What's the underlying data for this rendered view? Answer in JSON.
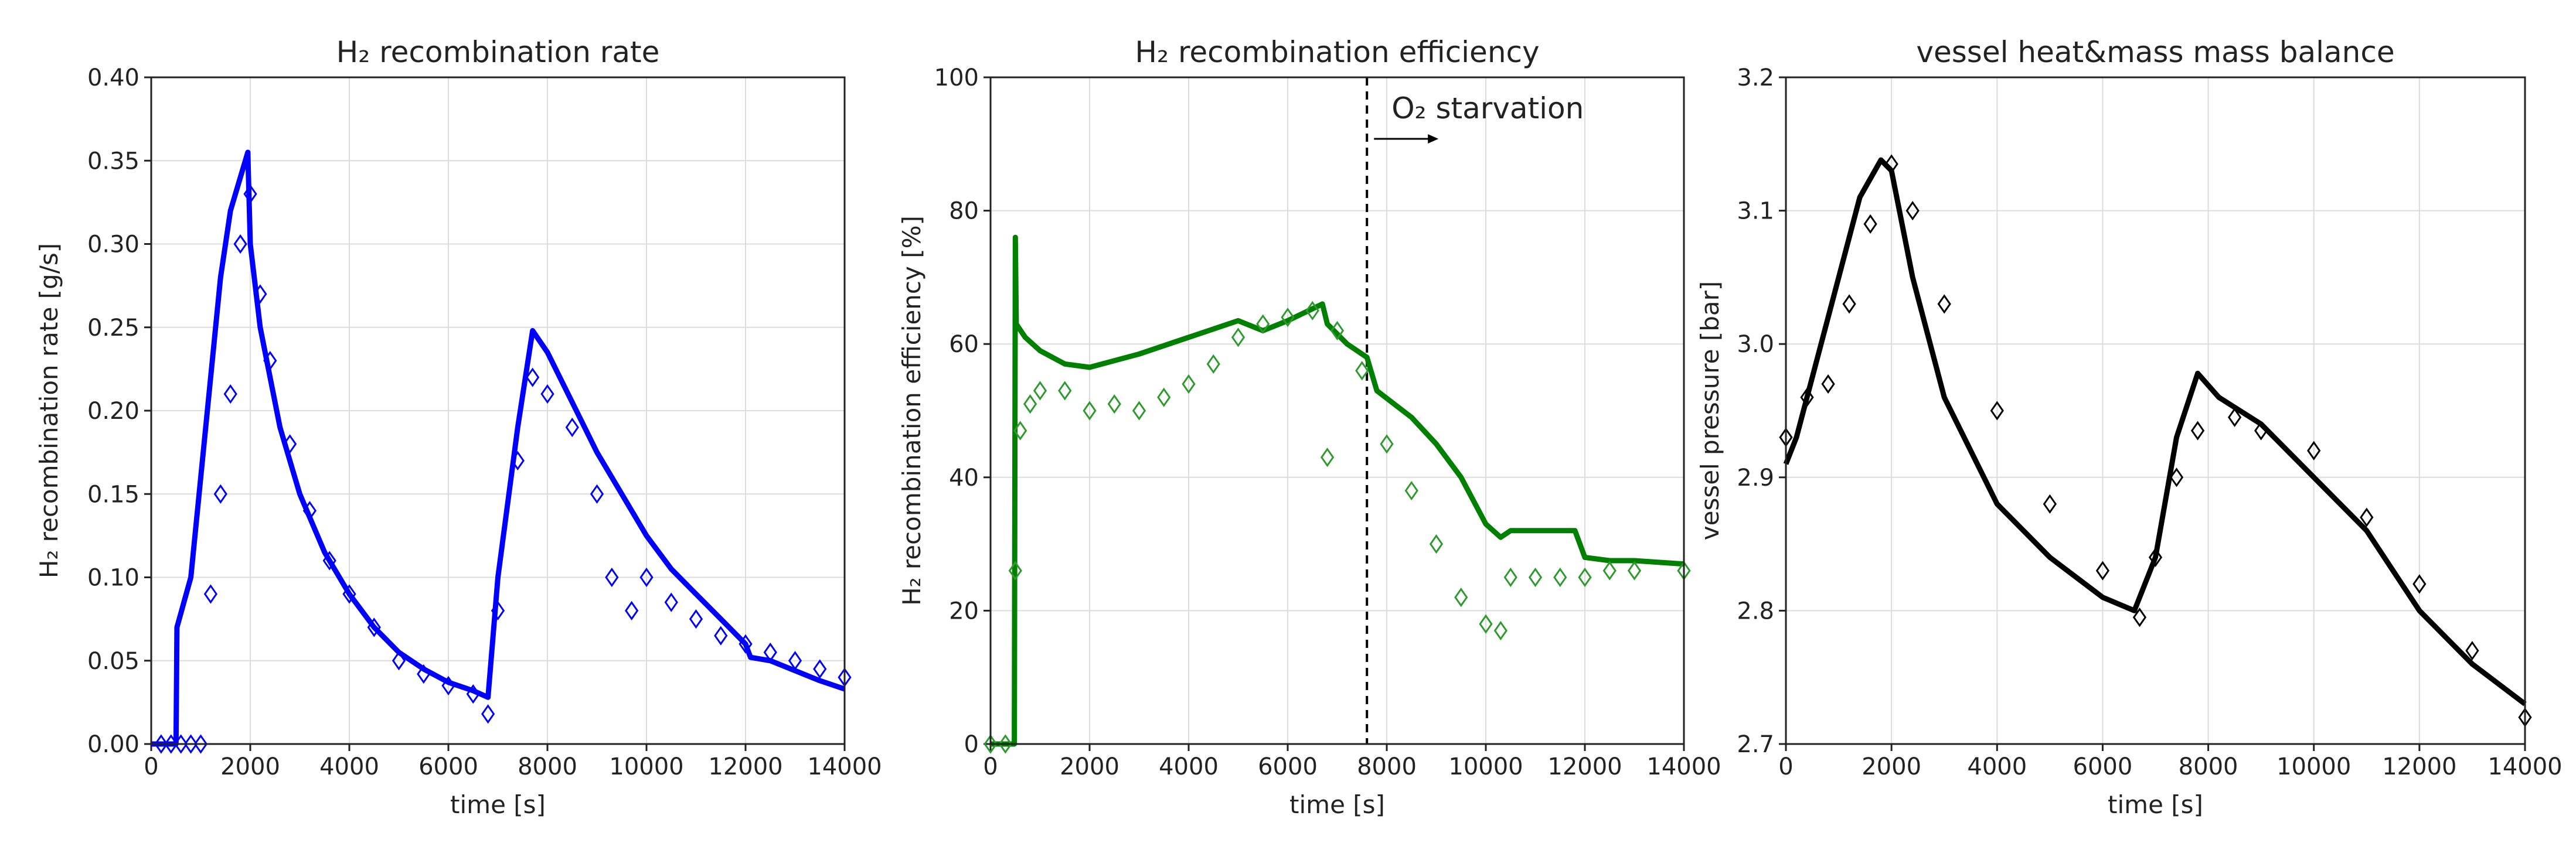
{
  "chart_data": [
    {
      "type": "line",
      "title": "H₂ recombination rate",
      "xlabel": "time [s]",
      "ylabel": "H₂ recombination rate [g/s]",
      "xlim": [
        0,
        14000
      ],
      "xticks": [
        0,
        2000,
        4000,
        6000,
        8000,
        10000,
        12000,
        14000
      ],
      "ylim": [
        0,
        0.4
      ],
      "yticks": [
        {
          "value": 0,
          "label": "0.00"
        },
        {
          "value": 0.05,
          "label": "0.05"
        },
        {
          "value": 0.1,
          "label": "0.10"
        },
        {
          "value": 0.15,
          "label": "0.15"
        },
        {
          "value": 0.2,
          "label": "0.20"
        },
        {
          "value": 0.25,
          "label": "0.25"
        },
        {
          "value": 0.3,
          "label": "0.30"
        },
        {
          "value": 0.35,
          "label": "0.35"
        },
        {
          "value": 0.4,
          "label": "0.40"
        }
      ],
      "grid": true,
      "series": [
        {
          "style": "line",
          "color": "#0000ff",
          "x": [
            0,
            500,
            520,
            800,
            1000,
            1200,
            1400,
            1600,
            1800,
            1950,
            2000,
            2200,
            2600,
            3000,
            3500,
            4000,
            4500,
            5000,
            5500,
            6000,
            6500,
            6800,
            7000,
            7400,
            7700,
            8000,
            8500,
            9000,
            9500,
            10000,
            10500,
            11000,
            11500,
            12000,
            12100,
            12500,
            13000,
            13500,
            14000
          ],
          "values": [
            0,
            0,
            0.07,
            0.1,
            0.16,
            0.22,
            0.28,
            0.32,
            0.34,
            0.355,
            0.3,
            0.25,
            0.19,
            0.15,
            0.115,
            0.09,
            0.07,
            0.055,
            0.045,
            0.037,
            0.032,
            0.028,
            0.1,
            0.19,
            0.248,
            0.235,
            0.205,
            0.175,
            0.15,
            0.125,
            0.105,
            0.09,
            0.075,
            0.06,
            0.052,
            0.05,
            0.044,
            0.038,
            0.033
          ]
        },
        {
          "style": "markers",
          "color": "#0000ff",
          "x": [
            200,
            400,
            600,
            800,
            1000,
            1200,
            1400,
            1600,
            1800,
            2000,
            2200,
            2400,
            2800,
            3200,
            3600,
            4000,
            4500,
            5000,
            5500,
            6000,
            6500,
            6800,
            7000,
            7400,
            7700,
            8000,
            8500,
            9000,
            9300,
            9700,
            10000,
            10500,
            11000,
            11500,
            12000,
            12500,
            13000,
            13500,
            14000
          ],
          "values": [
            0,
            0,
            0,
            0,
            0,
            0.09,
            0.15,
            0.21,
            0.3,
            0.33,
            0.27,
            0.23,
            0.18,
            0.14,
            0.11,
            0.09,
            0.07,
            0.05,
            0.042,
            0.035,
            0.03,
            0.018,
            0.08,
            0.17,
            0.22,
            0.21,
            0.19,
            0.15,
            0.1,
            0.08,
            0.1,
            0.085,
            0.075,
            0.065,
            0.06,
            0.055,
            0.05,
            0.045,
            0.04
          ]
        }
      ]
    },
    {
      "type": "line",
      "title": "H₂ recombination efficiency",
      "xlabel": "time [s]",
      "ylabel": "H₂ recombination efficiency [%]",
      "xlim": [
        0,
        14000
      ],
      "xticks": [
        0,
        2000,
        4000,
        6000,
        8000,
        10000,
        12000,
        14000
      ],
      "ylim": [
        0,
        100
      ],
      "yticks": [
        0,
        20,
        40,
        60,
        80,
        100
      ],
      "grid": true,
      "vline": 7600,
      "annotation": "O₂ starvation",
      "series": [
        {
          "style": "line",
          "color": "#008000",
          "x": [
            0,
            480,
            500,
            520,
            700,
            1000,
            1500,
            2000,
            3000,
            4000,
            5000,
            5500,
            6000,
            6700,
            6800,
            7200,
            7600,
            7800,
            8500,
            9000,
            9500,
            10000,
            10300,
            10500,
            11000,
            11800,
            12000,
            12500,
            13000,
            14000
          ],
          "values": [
            0,
            0,
            76,
            63,
            61,
            59,
            57,
            56.5,
            58.5,
            61,
            63.5,
            62,
            63.5,
            66,
            63,
            60,
            58,
            53,
            49,
            45,
            40,
            33,
            31,
            32,
            32,
            32,
            28,
            27.5,
            27.5,
            27
          ]
        },
        {
          "style": "markers",
          "color": "#2e9a2e",
          "x": [
            0,
            300,
            500,
            600,
            800,
            1000,
            1500,
            2000,
            2500,
            3000,
            3500,
            4000,
            4500,
            5000,
            5500,
            6000,
            6500,
            6800,
            7000,
            7500,
            8000,
            8500,
            9000,
            9500,
            10000,
            10300,
            10500,
            11000,
            11500,
            12000,
            12500,
            13000,
            14000
          ],
          "values": [
            0,
            0,
            26,
            47,
            51,
            53,
            53,
            50,
            51,
            50,
            52,
            54,
            57,
            61,
            63,
            64,
            65,
            43,
            62,
            56,
            45,
            38,
            30,
            22,
            18,
            17,
            25,
            25,
            25,
            25,
            26,
            26,
            26
          ]
        }
      ]
    },
    {
      "type": "line",
      "title": "vessel heat&mass mass balance",
      "xlabel": "time [s]",
      "ylabel": "vessel pressure [bar]",
      "xlim": [
        0,
        14000
      ],
      "xticks": [
        0,
        2000,
        4000,
        6000,
        8000,
        10000,
        12000,
        14000
      ],
      "ylim": [
        2.7,
        3.2
      ],
      "yticks": [
        2.7,
        2.8,
        2.9,
        {
          "value": 3,
          "label": "3.0"
        },
        3.1,
        3.2
      ],
      "grid": true,
      "series": [
        {
          "style": "line",
          "color": "#000000",
          "x": [
            0,
            200,
            400,
            600,
            1000,
            1400,
            1800,
            2000,
            2400,
            3000,
            4000,
            5000,
            6000,
            6600,
            7000,
            7400,
            7800,
            8200,
            9000,
            10000,
            11000,
            12000,
            13000,
            14000
          ],
          "values": [
            2.91,
            2.93,
            2.96,
            2.99,
            3.05,
            3.11,
            3.138,
            3.13,
            3.05,
            2.96,
            2.88,
            2.84,
            2.81,
            2.8,
            2.84,
            2.93,
            2.978,
            2.96,
            2.94,
            2.9,
            2.86,
            2.8,
            2.76,
            2.73
          ]
        },
        {
          "style": "markers",
          "color": "#000000",
          "x": [
            0,
            400,
            800,
            1200,
            1600,
            2000,
            2400,
            3000,
            4000,
            5000,
            6000,
            6700,
            7000,
            7400,
            7800,
            8500,
            9000,
            10000,
            11000,
            12000,
            13000,
            14000
          ],
          "values": [
            2.93,
            2.96,
            2.97,
            3.03,
            3.09,
            3.135,
            3.1,
            3.03,
            2.95,
            2.88,
            2.83,
            2.795,
            2.84,
            2.9,
            2.935,
            2.945,
            2.935,
            2.92,
            2.87,
            2.82,
            2.77,
            2.72
          ]
        }
      ]
    }
  ]
}
